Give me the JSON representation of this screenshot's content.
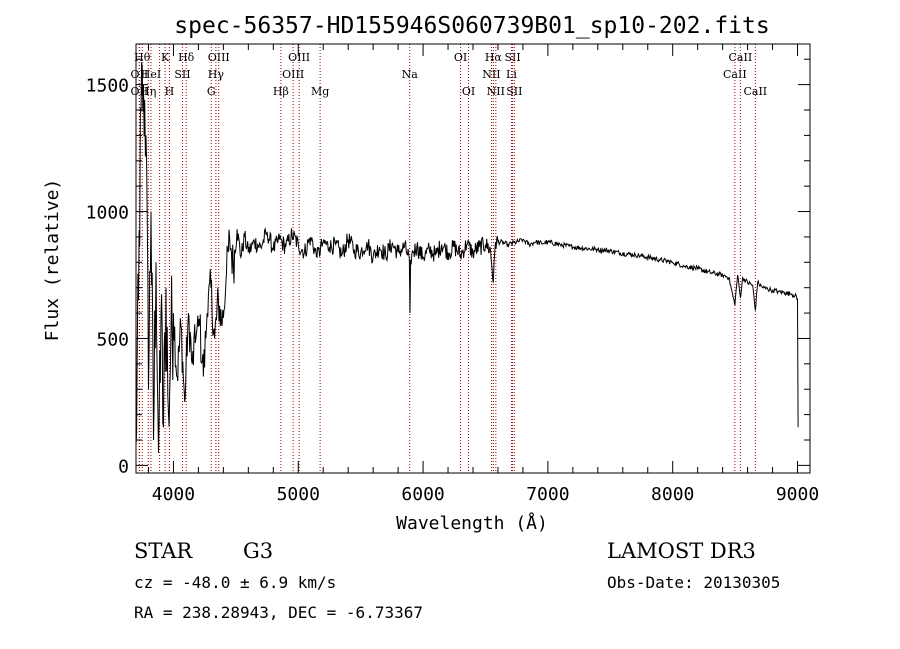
{
  "chart_data": {
    "type": "line",
    "title": "spec-56357-HD155946S060739B01_sp10-202.fits",
    "xlabel": "Wavelength (Å)",
    "ylabel": "Flux (relative)",
    "xlim": [
      3700,
      9100
    ],
    "ylim": [
      -30,
      1660
    ],
    "xticks": [
      4000,
      5000,
      6000,
      7000,
      8000,
      9000
    ],
    "yticks": [
      0,
      500,
      1000,
      1500
    ],
    "grid": false,
    "series": [
      {
        "x": [
          3700,
          3720,
          3740,
          3760,
          3780,
          3800,
          3820,
          3840,
          3860,
          3880,
          3900,
          3920,
          3940,
          3960,
          3980,
          4000,
          4030,
          4060,
          4090,
          4120,
          4150,
          4180,
          4210,
          4240,
          4270,
          4300,
          4330,
          4360,
          4390,
          4420,
          4450,
          4480,
          4510,
          4540,
          4570,
          4600,
          4650,
          4700,
          4750,
          4800,
          4850,
          4900,
          4950,
          5000,
          5050,
          5100,
          5150,
          5200,
          5250,
          5300,
          5350,
          5400,
          5450,
          5500,
          5550,
          5600,
          5650,
          5700,
          5750,
          5800,
          5850,
          5890,
          5895,
          5900,
          5920,
          5950,
          6000,
          6050,
          6100,
          6150,
          6200,
          6250,
          6300,
          6350,
          6400,
          6450,
          6500,
          6540,
          6563,
          6580,
          6620,
          6680,
          6750,
          6800,
          6850,
          6900,
          6950,
          7000,
          7100,
          7200,
          7300,
          7400,
          7500,
          7600,
          7700,
          7800,
          7900,
          8000,
          8100,
          8200,
          8300,
          8400,
          8450,
          8498,
          8520,
          8542,
          8560,
          8600,
          8640,
          8662,
          8680,
          8720,
          8760,
          8800,
          8850,
          8900,
          8950,
          8980,
          9000,
          9005
        ],
        "y": [
          80,
          650,
          1400,
          1500,
          1300,
          300,
          1000,
          100,
          800,
          50,
          600,
          150,
          700,
          200,
          500,
          600,
          350,
          550,
          250,
          600,
          400,
          500,
          550,
          350,
          600,
          700,
          500,
          650,
          550,
          720,
          900,
          780,
          930,
          820,
          900,
          840,
          880,
          860,
          920,
          850,
          890,
          860,
          910,
          870,
          840,
          900,
          820,
          880,
          860,
          870,
          830,
          890,
          850,
          840,
          880,
          820,
          860,
          830,
          870,
          840,
          860,
          820,
          600,
          810,
          840,
          860,
          820,
          850,
          830,
          870,
          840,
          860,
          830,
          870,
          840,
          860,
          870,
          850,
          720,
          880,
          880,
          870,
          880,
          890,
          870,
          880,
          875,
          880,
          870,
          860,
          855,
          850,
          845,
          835,
          830,
          820,
          810,
          800,
          785,
          775,
          760,
          750,
          740,
          630,
          750,
          660,
          740,
          720,
          710,
          610,
          720,
          700,
          695,
          690,
          685,
          680,
          675,
          670,
          655,
          150
        ]
      }
    ],
    "line_markers": [
      {
        "wavelength": 3750,
        "label": "Hθ",
        "row": 0
      },
      {
        "wavelength": 3727,
        "label": "OII",
        "row": 1
      },
      {
        "wavelength": 3727,
        "label": "OII",
        "row": 2
      },
      {
        "wavelength": 3798,
        "label": "Hη",
        "row": 2
      },
      {
        "wavelength": 3820,
        "label": "HeI",
        "row": 1
      },
      {
        "wavelength": 3889,
        "label": "",
        "row": -1
      },
      {
        "wavelength": 3933,
        "label": "K",
        "row": 0
      },
      {
        "wavelength": 3968,
        "label": "H",
        "row": 2
      },
      {
        "wavelength": 4072,
        "label": "SII",
        "row": 1
      },
      {
        "wavelength": 4102,
        "label": "Hδ",
        "row": 0
      },
      {
        "wavelength": 4303,
        "label": "G",
        "row": 2
      },
      {
        "wavelength": 4340,
        "label": "Hγ",
        "row": 1
      },
      {
        "wavelength": 4363,
        "label": "OIII",
        "row": 0
      },
      {
        "wavelength": 4861,
        "label": "Hβ",
        "row": 2
      },
      {
        "wavelength": 4959,
        "label": "OIII",
        "row": 1
      },
      {
        "wavelength": 5007,
        "label": "OIII",
        "row": 0
      },
      {
        "wavelength": 5175,
        "label": "Mg",
        "row": 2
      },
      {
        "wavelength": 5893,
        "label": "Na",
        "row": 1
      },
      {
        "wavelength": 6300,
        "label": "OI",
        "row": 0
      },
      {
        "wavelength": 6364,
        "label": "OI",
        "row": 2
      },
      {
        "wavelength": 6548,
        "label": "NII",
        "row": 1
      },
      {
        "wavelength": 6563,
        "label": "Hα",
        "row": 0
      },
      {
        "wavelength": 6583,
        "label": "NII",
        "row": 2
      },
      {
        "wavelength": 6708,
        "label": "Li",
        "row": 1
      },
      {
        "wavelength": 6717,
        "label": "SII",
        "row": 0
      },
      {
        "wavelength": 6731,
        "label": "SII",
        "row": 2
      },
      {
        "wavelength": 8498,
        "label": "CaII",
        "row": 1
      },
      {
        "wavelength": 8542,
        "label": "CaII",
        "row": 0
      },
      {
        "wavelength": 8662,
        "label": "CaII",
        "row": 2
      }
    ]
  },
  "info": {
    "object_class": "STAR",
    "subclass": "G3",
    "survey": "LAMOST DR3",
    "redshift": "cz = -48.0 ± 6.9 km/s",
    "obs_date": "Obs-Date: 20130305",
    "coordinates": "RA = 238.28943, DEC =  -6.73367"
  }
}
